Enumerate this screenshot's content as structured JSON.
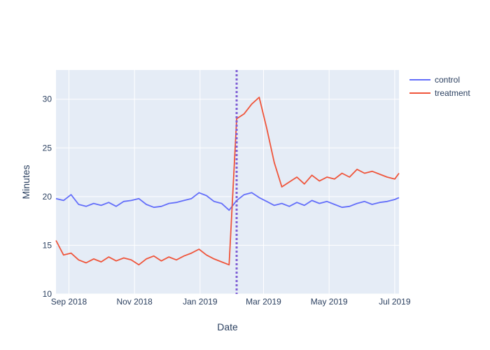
{
  "chart_data": {
    "type": "line",
    "xlabel": "Date",
    "ylabel": "Minutes",
    "xlim": [
      "2018-08-20",
      "2019-07-05"
    ],
    "ylim": [
      10,
      33
    ],
    "x_ticks": [
      {
        "date": "2018-09-01",
        "label": "Sep 2018"
      },
      {
        "date": "2018-11-01",
        "label": "Nov 2018"
      },
      {
        "date": "2019-01-01",
        "label": "Jan 2019"
      },
      {
        "date": "2019-03-01",
        "label": "Mar 2019"
      },
      {
        "date": "2019-05-01",
        "label": "May 2019"
      },
      {
        "date": "2019-07-01",
        "label": "Jul 2019"
      }
    ],
    "y_ticks": [
      10,
      15,
      20,
      25,
      30
    ],
    "grid": true,
    "legend_position": "top-right",
    "annotation": {
      "type": "vertical-dotted-line",
      "date": "2019-02-04",
      "color": "#7f5fd5"
    },
    "series": [
      {
        "name": "control",
        "color": "#636efa",
        "points": [
          [
            "2018-08-20",
            19.8
          ],
          [
            "2018-08-27",
            19.6
          ],
          [
            "2018-09-03",
            20.2
          ],
          [
            "2018-09-10",
            19.2
          ],
          [
            "2018-09-17",
            19.0
          ],
          [
            "2018-09-24",
            19.3
          ],
          [
            "2018-10-01",
            19.1
          ],
          [
            "2018-10-08",
            19.4
          ],
          [
            "2018-10-15",
            19.0
          ],
          [
            "2018-10-22",
            19.5
          ],
          [
            "2018-10-29",
            19.6
          ],
          [
            "2018-11-05",
            19.8
          ],
          [
            "2018-11-12",
            19.2
          ],
          [
            "2018-11-19",
            18.9
          ],
          [
            "2018-11-26",
            19.0
          ],
          [
            "2018-12-03",
            19.3
          ],
          [
            "2018-12-10",
            19.4
          ],
          [
            "2018-12-17",
            19.6
          ],
          [
            "2018-12-24",
            19.8
          ],
          [
            "2018-12-31",
            20.4
          ],
          [
            "2019-01-07",
            20.1
          ],
          [
            "2019-01-14",
            19.5
          ],
          [
            "2019-01-21",
            19.3
          ],
          [
            "2019-01-28",
            18.6
          ],
          [
            "2019-02-04",
            19.6
          ],
          [
            "2019-02-11",
            20.2
          ],
          [
            "2019-02-18",
            20.4
          ],
          [
            "2019-02-25",
            19.9
          ],
          [
            "2019-03-04",
            19.5
          ],
          [
            "2019-03-11",
            19.1
          ],
          [
            "2019-03-18",
            19.3
          ],
          [
            "2019-03-25",
            19.0
          ],
          [
            "2019-04-01",
            19.4
          ],
          [
            "2019-04-08",
            19.1
          ],
          [
            "2019-04-15",
            19.6
          ],
          [
            "2019-04-22",
            19.3
          ],
          [
            "2019-04-29",
            19.5
          ],
          [
            "2019-05-06",
            19.2
          ],
          [
            "2019-05-13",
            18.9
          ],
          [
            "2019-05-20",
            19.0
          ],
          [
            "2019-05-27",
            19.3
          ],
          [
            "2019-06-03",
            19.5
          ],
          [
            "2019-06-10",
            19.2
          ],
          [
            "2019-06-17",
            19.4
          ],
          [
            "2019-06-24",
            19.5
          ],
          [
            "2019-07-01",
            19.7
          ],
          [
            "2019-07-05",
            19.9
          ]
        ]
      },
      {
        "name": "treatment",
        "color": "#ef553b",
        "points": [
          [
            "2018-08-20",
            15.5
          ],
          [
            "2018-08-27",
            14.0
          ],
          [
            "2018-09-03",
            14.2
          ],
          [
            "2018-09-10",
            13.5
          ],
          [
            "2018-09-17",
            13.2
          ],
          [
            "2018-09-24",
            13.6
          ],
          [
            "2018-10-01",
            13.3
          ],
          [
            "2018-10-08",
            13.8
          ],
          [
            "2018-10-15",
            13.4
          ],
          [
            "2018-10-22",
            13.7
          ],
          [
            "2018-10-29",
            13.5
          ],
          [
            "2018-11-05",
            13.0
          ],
          [
            "2018-11-12",
            13.6
          ],
          [
            "2018-11-19",
            13.9
          ],
          [
            "2018-11-26",
            13.4
          ],
          [
            "2018-12-03",
            13.8
          ],
          [
            "2018-12-10",
            13.5
          ],
          [
            "2018-12-17",
            13.9
          ],
          [
            "2018-12-24",
            14.2
          ],
          [
            "2018-12-31",
            14.6
          ],
          [
            "2019-01-07",
            14.0
          ],
          [
            "2019-01-14",
            13.6
          ],
          [
            "2019-01-21",
            13.3
          ],
          [
            "2019-01-28",
            13.0
          ],
          [
            "2019-02-04",
            28.0
          ],
          [
            "2019-02-11",
            28.5
          ],
          [
            "2019-02-18",
            29.5
          ],
          [
            "2019-02-25",
            30.2
          ],
          [
            "2019-03-04",
            27.0
          ],
          [
            "2019-03-11",
            23.5
          ],
          [
            "2019-03-18",
            21.0
          ],
          [
            "2019-03-25",
            21.5
          ],
          [
            "2019-04-01",
            22.0
          ],
          [
            "2019-04-08",
            21.3
          ],
          [
            "2019-04-15",
            22.2
          ],
          [
            "2019-04-22",
            21.6
          ],
          [
            "2019-04-29",
            22.0
          ],
          [
            "2019-05-06",
            21.8
          ],
          [
            "2019-05-13",
            22.4
          ],
          [
            "2019-05-20",
            22.0
          ],
          [
            "2019-05-27",
            22.8
          ],
          [
            "2019-06-03",
            22.4
          ],
          [
            "2019-06-10",
            22.6
          ],
          [
            "2019-06-17",
            22.3
          ],
          [
            "2019-06-24",
            22.0
          ],
          [
            "2019-07-01",
            21.8
          ],
          [
            "2019-07-05",
            22.4
          ]
        ]
      }
    ]
  }
}
